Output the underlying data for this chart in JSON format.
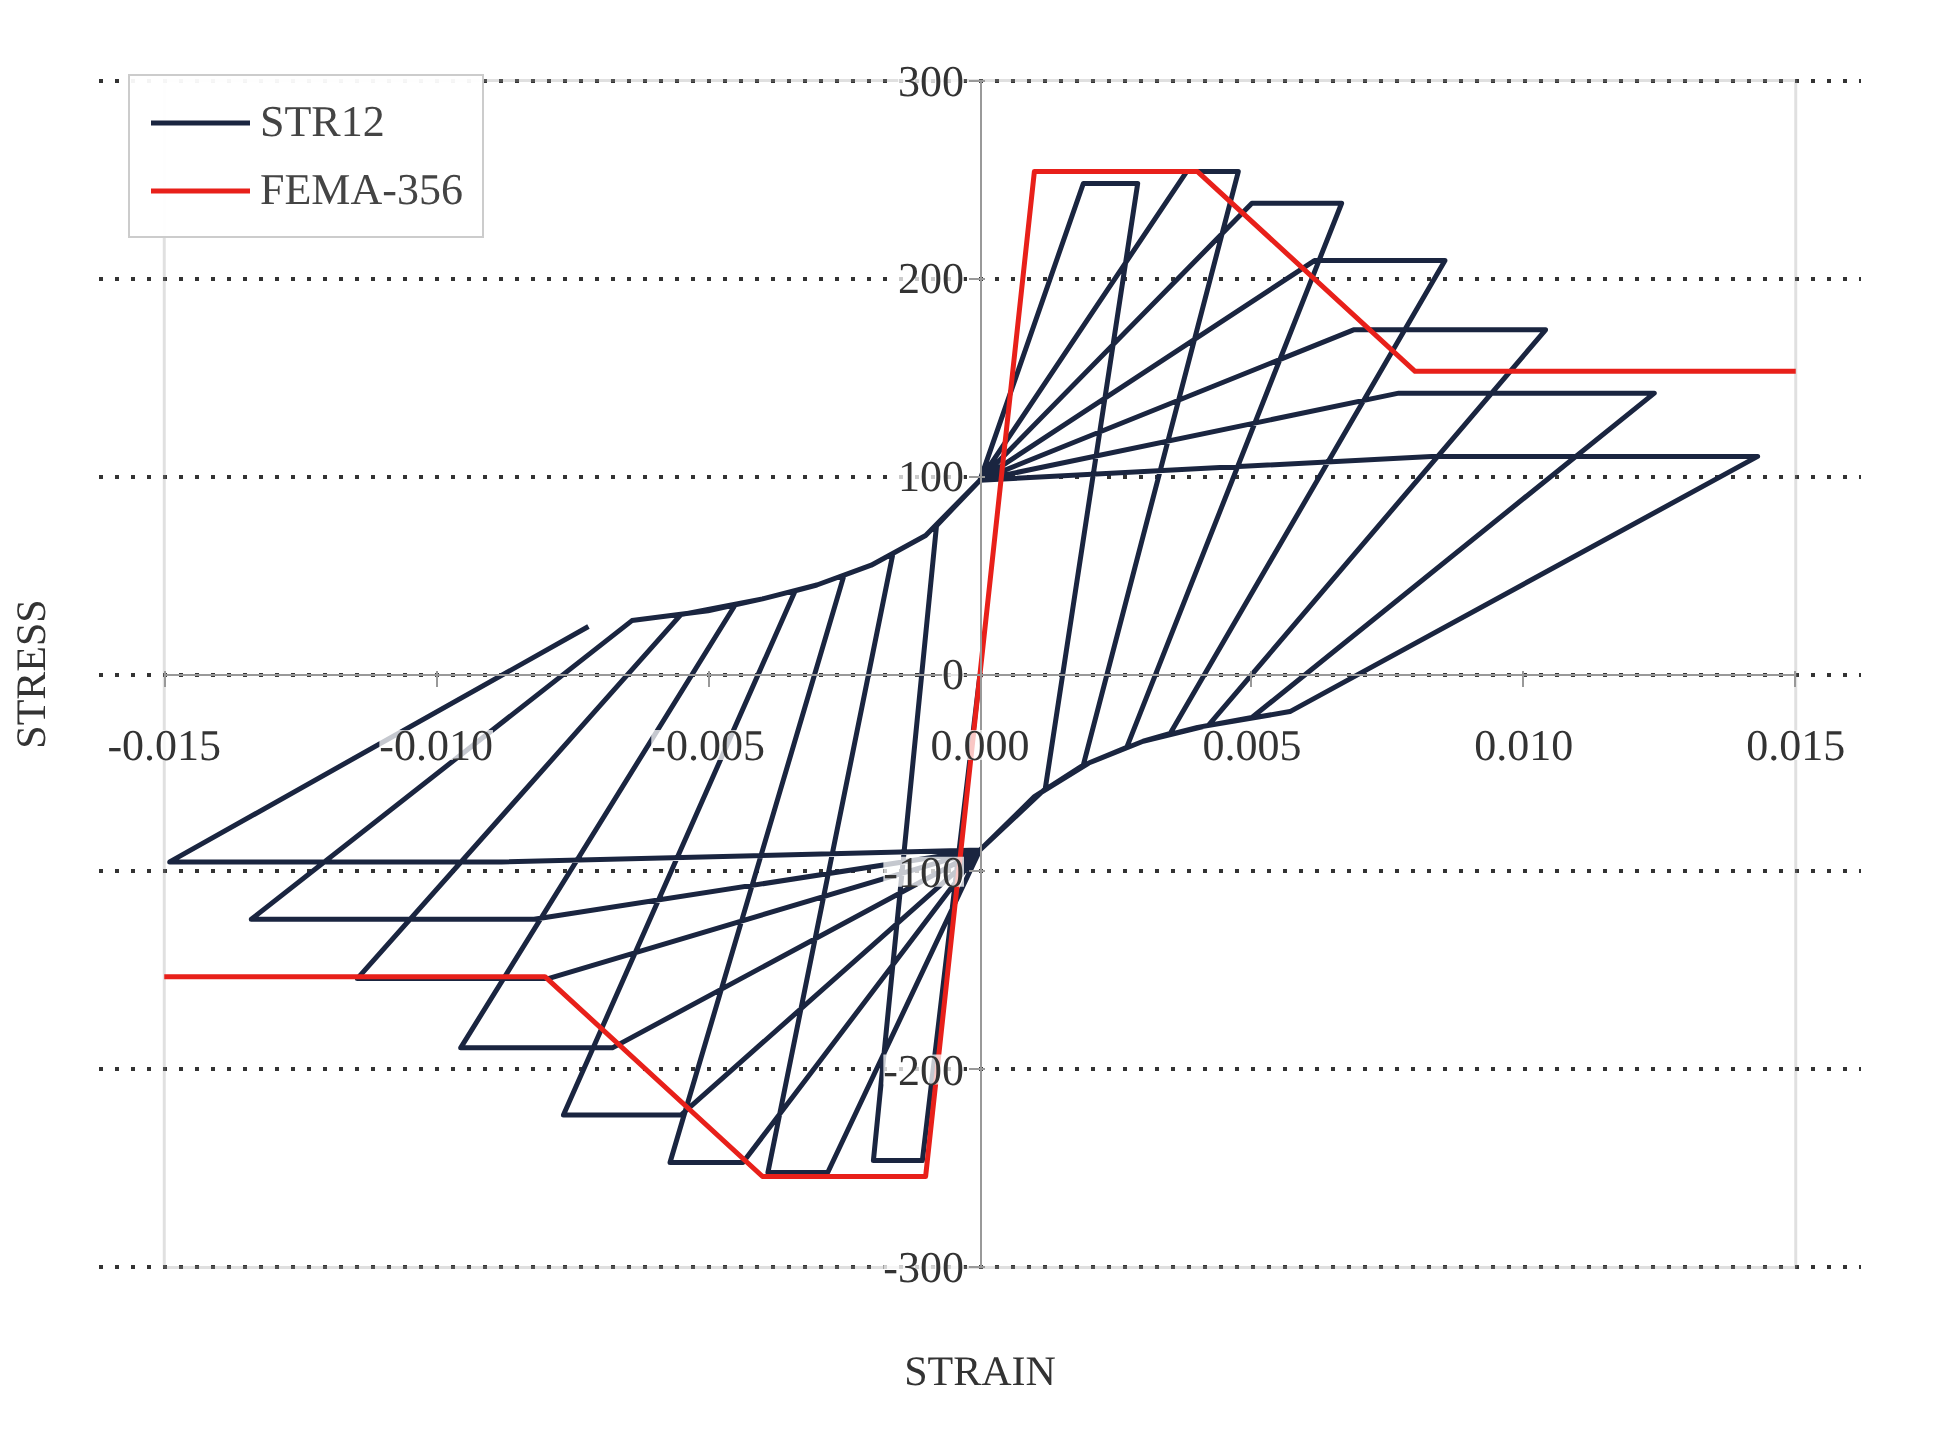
{
  "chart_data": {
    "type": "line",
    "xlabel": "STRAIN",
    "ylabel": "STRESS",
    "xlim": [
      -0.015,
      0.015
    ],
    "ylim": [
      -300,
      300
    ],
    "xticks": [
      {
        "value": -0.015,
        "label": "-0.015"
      },
      {
        "value": -0.01,
        "label": "-0.010"
      },
      {
        "value": -0.005,
        "label": "-0.005"
      },
      {
        "value": 0,
        "label": "0.000"
      },
      {
        "value": 0.005,
        "label": "0.005"
      },
      {
        "value": 0.01,
        "label": "0.010"
      },
      {
        "value": 0.015,
        "label": "0.015"
      }
    ],
    "yticks": [
      -300,
      -200,
      -100,
      0,
      100,
      200,
      300
    ],
    "grid": "y",
    "legend": "top left",
    "series": [
      {
        "name": "STR12",
        "color": "#1a2540",
        "x": [
          0,
          -0.00106,
          -0.00196,
          -0.0008,
          0,
          0.0019,
          0.0029,
          0.0012,
          0,
          -0.0028,
          -0.0039,
          -0.0016,
          -0.001,
          0,
          0.0038,
          0.00475,
          0.0019,
          0.001,
          0,
          -0.00436,
          -0.0057,
          -0.0025,
          -0.002,
          -0.001,
          0,
          0.005,
          0.00665,
          0.0027,
          0.002,
          0.001,
          0,
          -0.0055,
          -0.00766,
          -0.0034,
          -0.003,
          -0.002,
          -0.001,
          0,
          0.00615,
          0.00855,
          0.0035,
          0.003,
          0.002,
          0.001,
          0,
          -0.00676,
          -0.00955,
          -0.0045,
          -0.004,
          -0.003,
          -0.002,
          -0.001,
          0,
          0.00687,
          0.0104,
          0.0042,
          0.003,
          0.002,
          0.001,
          0,
          -0.00794,
          -0.01145,
          -0.0055,
          -0.004,
          -0.003,
          -0.002,
          -0.001,
          0,
          0.0077,
          0.0124,
          0.005,
          0.004,
          0.003,
          0.002,
          0.001,
          0,
          -0.0082,
          -0.0134,
          -0.0064,
          -0.005,
          -0.004,
          -0.003,
          -0.002,
          -0.001,
          0,
          0.0083,
          0.0143,
          0.0057,
          0.004,
          0.003,
          0.002,
          0.001,
          0,
          -0.0088,
          -0.0149,
          -0.0072
        ],
        "values": [
          0,
          -246,
          -246,
          75,
          98,
          248,
          248,
          -58,
          -89,
          -252,
          -252,
          61,
          70,
          98,
          254,
          254,
          -46,
          -62,
          -89,
          -247,
          -247,
          50,
          55,
          70,
          98,
          238,
          238,
          -37,
          -45,
          -62,
          -89,
          -223,
          -223,
          42,
          45,
          55,
          70,
          98,
          209,
          209,
          -30,
          -34,
          -45,
          -62,
          -89,
          -189,
          -189,
          35,
          38,
          45,
          55,
          70,
          98,
          174,
          174,
          -26,
          -34,
          -45,
          -62,
          -89,
          -154,
          -154,
          30,
          38,
          45,
          55,
          70,
          98,
          142,
          142,
          -22,
          -27,
          -34,
          -45,
          -62,
          -89,
          -124,
          -124,
          27,
          32,
          38,
          45,
          55,
          70,
          98,
          110,
          110,
          -19,
          -27,
          -34,
          -45,
          -62,
          -89,
          -95,
          -95,
          24
        ]
      },
      {
        "name": "FEMA-356",
        "color": "#e8201a",
        "x": [
          -0.015,
          -0.008,
          -0.004,
          -0.001,
          0.001,
          0.004,
          0.008,
          0.015
        ],
        "values": [
          -153,
          -153,
          -254,
          -254,
          254,
          254,
          153,
          153
        ]
      }
    ]
  }
}
